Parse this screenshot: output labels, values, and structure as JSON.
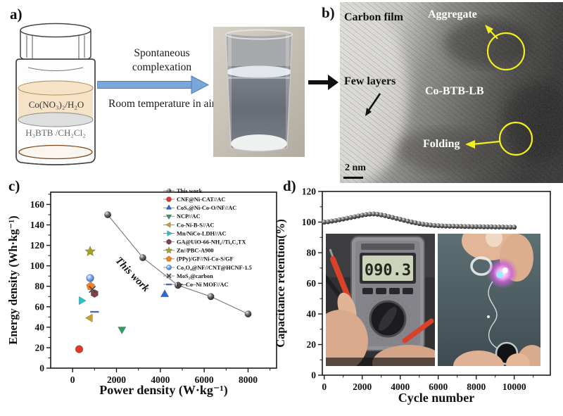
{
  "panels": {
    "a": {
      "label": "a)",
      "vial_top_layer": "Co(NO₃)₂/H₂O",
      "vial_bottom_layer": "H₃BTB /CH₂Cl₂",
      "process_step": "Spontaneous complexation",
      "process_conditions": "Room temperature in air"
    },
    "b": {
      "label": "b)",
      "carbon_film": "Carbon film",
      "aggregate": "Aggregate",
      "few_layers": "Few layers",
      "material": "Co-BTB-LB",
      "folding": "Folding",
      "scale_bar": "2 nm"
    },
    "c": {
      "label": "c)"
    },
    "d": {
      "label": "d)",
      "multimeter_reading": "090.3"
    }
  },
  "colors": {
    "process_arrow": "#7aa6d9",
    "tem_highlight": "#f2ef1d"
  },
  "chart_data": [
    {
      "id": "energy-power",
      "type": "scatter",
      "title": "",
      "xlabel": "Power density (W·kg⁻¹)",
      "ylabel": "Energy density (Wh·kg⁻¹)",
      "xlim": [
        -1000,
        9300
      ],
      "ylim": [
        0,
        172
      ],
      "xticks": [
        0,
        2000,
        4000,
        6000,
        8000
      ],
      "yticks": [
        0,
        20,
        40,
        60,
        80,
        100,
        120,
        140,
        160
      ],
      "grid": false,
      "legend_position": "top-right-inside",
      "annotation": "This work",
      "series": [
        {
          "name": "This work",
          "marker": "sphere",
          "color": "#555555",
          "line": true,
          "points": [
            [
              1600,
              150
            ],
            [
              3200,
              108
            ],
            [
              4800,
              81
            ],
            [
              6300,
              70
            ],
            [
              8000,
              53
            ]
          ]
        },
        {
          "name": "CNF@Ni-CAT//AC",
          "marker": "circle",
          "color": "#e03a2f",
          "points": [
            [
              300,
              18.5
            ]
          ]
        },
        {
          "name": "CoSₓ@Ni-Co-O/NF//AC",
          "marker": "triangle-up",
          "color": "#2b6bd0",
          "points": [
            [
              4200,
              72
            ]
          ]
        },
        {
          "name": "NCP//AC",
          "marker": "triangle-down",
          "color": "#2f9e68",
          "points": [
            [
              2250,
              38
            ]
          ]
        },
        {
          "name": "Co-Ni-B-S//AC",
          "marker": "triangle-left",
          "color": "#c9a227",
          "points": [
            [
              800,
              49
            ]
          ]
        },
        {
          "name": "Mn/NiCo-LDH//AC",
          "marker": "triangle-right",
          "color": "#22c4cf",
          "points": [
            [
              400,
              66
            ]
          ]
        },
        {
          "name": "GA@UiO-66-NH₂//Ti₃C₂TX",
          "marker": "hexagon",
          "color": "#7a4448",
          "points": [
            [
              1000,
              73
            ]
          ]
        },
        {
          "name": "Zn//PBC-A900",
          "marker": "star",
          "color": "#a6a21c",
          "points": [
            [
              800,
              114
            ]
          ]
        },
        {
          "name": "(PPy)/GF//Ni-Co-S/GF",
          "marker": "pentagon",
          "color": "#f58220",
          "points": [
            [
              820,
              80
            ]
          ]
        },
        {
          "name": "Co₃O₄@NF//CNT@HCNF-1.5",
          "marker": "sphere-blue",
          "color": "#7fa8e8",
          "points": [
            [
              800,
              88
            ]
          ]
        },
        {
          "name": "MoS₂@carbon",
          "marker": "x",
          "color": "#444444",
          "points": [
            [
              900,
              77
            ]
          ]
        },
        {
          "name": "Fe–Co–Ni MOF//AC",
          "marker": "dash",
          "color": "#4a6fa5",
          "points": [
            [
              1000,
              55
            ]
          ]
        }
      ]
    },
    {
      "id": "cycling",
      "type": "scatter",
      "title": "",
      "xlabel": "Cycle number",
      "ylabel": "Capacitance retention(%)",
      "xlim": [
        -100,
        11900
      ],
      "ylim": [
        0,
        120
      ],
      "xticks": [
        0,
        2000,
        4000,
        6000,
        8000,
        10000
      ],
      "yticks": [
        0,
        20,
        40,
        60,
        80,
        100,
        120
      ],
      "grid": false,
      "series": [
        {
          "name": "Capacitance retention",
          "marker": "sphere",
          "color": "#222222",
          "points": [
            [
              0,
              100
            ],
            [
              200,
              100.2
            ],
            [
              400,
              100.6
            ],
            [
              600,
              101
            ],
            [
              800,
              101.5
            ],
            [
              1000,
              102
            ],
            [
              1200,
              102.5
            ],
            [
              1400,
              103
            ],
            [
              1600,
              103.5
            ],
            [
              1800,
              104
            ],
            [
              2000,
              104.5
            ],
            [
              2200,
              104.9
            ],
            [
              2400,
              105.2
            ],
            [
              2600,
              105.3
            ],
            [
              2800,
              105.1
            ],
            [
              3000,
              104.7
            ],
            [
              3200,
              104.2
            ],
            [
              3400,
              103.6
            ],
            [
              3600,
              103
            ],
            [
              3800,
              102.4
            ],
            [
              4000,
              101.8
            ],
            [
              4200,
              101.2
            ],
            [
              4400,
              100.6
            ],
            [
              4600,
              100
            ],
            [
              4800,
              99.5
            ],
            [
              5000,
              99
            ],
            [
              5200,
              98.6
            ],
            [
              5400,
              98.3
            ],
            [
              5600,
              98
            ],
            [
              5800,
              97.8
            ],
            [
              6000,
              97.6
            ],
            [
              6200,
              97.5
            ],
            [
              6400,
              97.4
            ],
            [
              6600,
              97.3
            ],
            [
              6800,
              97.3
            ],
            [
              7000,
              97.2
            ],
            [
              7200,
              97.2
            ],
            [
              7400,
              97.1
            ],
            [
              7600,
              97.1
            ],
            [
              7800,
              97
            ],
            [
              8000,
              97
            ],
            [
              8200,
              97
            ],
            [
              8400,
              96.9
            ],
            [
              8600,
              96.9
            ],
            [
              8800,
              96.9
            ],
            [
              9000,
              96.8
            ],
            [
              9200,
              96.8
            ],
            [
              9400,
              96.8
            ],
            [
              9600,
              96.7
            ],
            [
              9800,
              96.7
            ],
            [
              10000,
              96.7
            ]
          ]
        }
      ]
    }
  ]
}
